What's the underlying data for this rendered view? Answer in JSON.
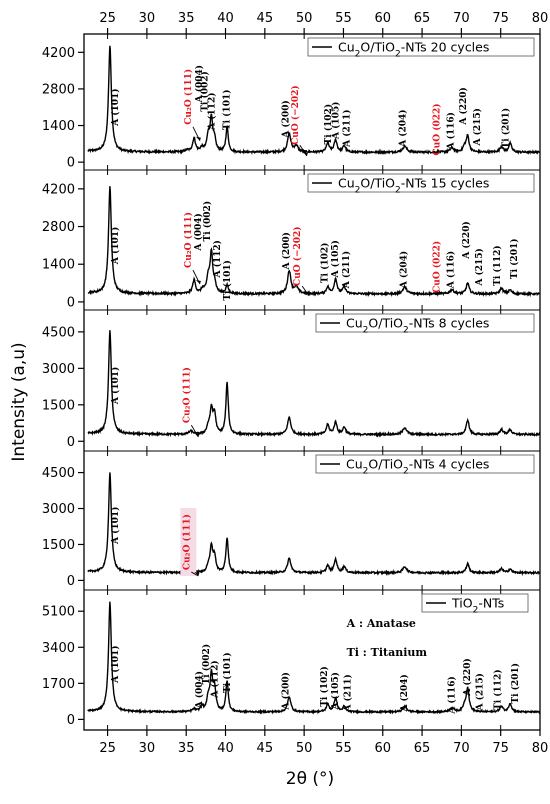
{
  "chart_data": {
    "type": "line",
    "xlabel": "2θ (°)",
    "ylabel": "Intensity (a,u)",
    "xlim": [
      22,
      80
    ],
    "x_ticks": [
      25,
      30,
      35,
      40,
      45,
      50,
      55,
      60,
      65,
      70,
      75,
      80
    ],
    "colors": {
      "line": "#000000",
      "cu_label": "#e8141b",
      "highlight": "#f4dbe6"
    },
    "panels": [
      {
        "legend_prefix": "Cu",
        "legend_sub1": "2",
        "legend_mid": "O/TiO",
        "legend_sub2": "2",
        "legend_suffix": "-NTs 20 cycles",
        "ylim": [
          -300,
          4900
        ],
        "y_ticks": [
          0,
          1400,
          2800,
          4200
        ],
        "y_tick_labels": [
          "0",
          "1400",
          "2800",
          "4200"
        ],
        "baseline": 380,
        "peaks": [
          [
            25.3,
            4050,
            0.22
          ],
          [
            35.1,
            60,
            0.3
          ],
          [
            36.0,
            520,
            0.22
          ],
          [
            37.0,
            150,
            0.22
          ],
          [
            37.8,
            550,
            0.22
          ],
          [
            38.2,
            1250,
            0.2
          ],
          [
            38.6,
            420,
            0.2
          ],
          [
            40.2,
            950,
            0.18
          ],
          [
            48.1,
            690,
            0.25
          ],
          [
            49.0,
            230,
            0.3
          ],
          [
            53.0,
            340,
            0.22
          ],
          [
            54.0,
            460,
            0.22
          ],
          [
            55.1,
            240,
            0.22
          ],
          [
            62.8,
            230,
            0.3
          ],
          [
            68.8,
            160,
            0.3
          ],
          [
            70.4,
            190,
            0.25
          ],
          [
            70.8,
            600,
            0.22
          ],
          [
            75.1,
            210,
            0.25
          ],
          [
            76.2,
            340,
            0.22
          ]
        ],
        "labels": [
          {
            "text": "A (101)",
            "x": 26.3,
            "y": 2100,
            "cu": false
          },
          {
            "text": "Cu₂O (111)",
            "x": 35.6,
            "y": 2500,
            "cu": true
          },
          {
            "text": "A (004)",
            "x": 37.0,
            "y": 3000,
            "cu": false
          },
          {
            "text": "Ti (002)",
            "x": 37.7,
            "y": 2700,
            "cu": false
          },
          {
            "text": "A (112)",
            "x": 38.6,
            "y": 1950,
            "cu": false
          },
          {
            "text": "Ti (101)",
            "x": 40.5,
            "y": 2000,
            "cu": false
          },
          {
            "text": "A (200)",
            "x": 48.0,
            "y": 1650,
            "cu": false
          },
          {
            "text": "CuO (−202)",
            "x": 49.2,
            "y": 1800,
            "cu": true
          },
          {
            "text": "Ti (102)",
            "x": 53.4,
            "y": 1450,
            "cu": false
          },
          {
            "text": "A (105)",
            "x": 54.4,
            "y": 1600,
            "cu": false
          },
          {
            "text": "A (211)",
            "x": 55.8,
            "y": 1300,
            "cu": false
          },
          {
            "text": "A (204)",
            "x": 62.9,
            "y": 1300,
            "cu": false
          },
          {
            "text": "CuO (022)",
            "x": 67.2,
            "y": 1250,
            "cu": true
          },
          {
            "text": "A (116)",
            "x": 69.0,
            "y": 1200,
            "cu": false
          },
          {
            "text": "A (220)",
            "x": 70.6,
            "y": 2150,
            "cu": false
          },
          {
            "text": "A (215)",
            "x": 72.4,
            "y": 1350,
            "cu": false
          },
          {
            "text": "Ti (201)",
            "x": 76.0,
            "y": 1300,
            "cu": false
          }
        ]
      },
      {
        "legend_prefix": "Cu",
        "legend_sub1": "2",
        "legend_mid": "O/TiO",
        "legend_sub2": "2",
        "legend_suffix": "-NTs 15 cycles",
        "ylim": [
          -300,
          4900
        ],
        "y_ticks": [
          0,
          1400,
          2800,
          4200
        ],
        "y_tick_labels": [
          "0",
          "1400",
          "2800",
          "4200"
        ],
        "baseline": 300,
        "peaks": [
          [
            25.3,
            3950,
            0.22
          ],
          [
            36.0,
            500,
            0.22
          ],
          [
            37.1,
            160,
            0.22
          ],
          [
            37.8,
            550,
            0.22
          ],
          [
            38.2,
            1450,
            0.2
          ],
          [
            38.6,
            350,
            0.2
          ],
          [
            40.2,
            300,
            0.2
          ],
          [
            48.1,
            850,
            0.25
          ],
          [
            49.0,
            250,
            0.3
          ],
          [
            53.0,
            250,
            0.22
          ],
          [
            54.0,
            550,
            0.22
          ],
          [
            55.1,
            260,
            0.22
          ],
          [
            62.8,
            250,
            0.3
          ],
          [
            68.8,
            150,
            0.3
          ],
          [
            70.8,
            400,
            0.22
          ],
          [
            75.1,
            200,
            0.25
          ],
          [
            76.2,
            140,
            0.22
          ]
        ],
        "labels": [
          {
            "text": "A (101)",
            "x": 26.3,
            "y": 2100,
            "cu": false
          },
          {
            "text": "Cu₂O (111)",
            "x": 35.6,
            "y": 2300,
            "cu": true
          },
          {
            "text": "A (004)",
            "x": 36.9,
            "y": 2600,
            "cu": false
          },
          {
            "text": "Ti (002)",
            "x": 38.0,
            "y": 3000,
            "cu": false
          },
          {
            "text": "A (112)",
            "x": 39.3,
            "y": 1600,
            "cu": false
          },
          {
            "text": "Ti (101)",
            "x": 40.6,
            "y": 800,
            "cu": false
          },
          {
            "text": "A (200)",
            "x": 48.1,
            "y": 1900,
            "cu": false
          },
          {
            "text": "CuO (−202)",
            "x": 49.5,
            "y": 1700,
            "cu": true
          },
          {
            "text": "Ti (102)",
            "x": 53.0,
            "y": 1450,
            "cu": false
          },
          {
            "text": "A (105)",
            "x": 54.3,
            "y": 1600,
            "cu": false
          },
          {
            "text": "A (211)",
            "x": 55.7,
            "y": 1200,
            "cu": false
          },
          {
            "text": "A (204)",
            "x": 63.0,
            "y": 1200,
            "cu": false
          },
          {
            "text": "CuO (022)",
            "x": 67.2,
            "y": 1300,
            "cu": true
          },
          {
            "text": "A (116)",
            "x": 69.0,
            "y": 1200,
            "cu": false
          },
          {
            "text": "A (220)",
            "x": 71.0,
            "y": 2300,
            "cu": false
          },
          {
            "text": "A (215)",
            "x": 72.6,
            "y": 1300,
            "cu": false
          },
          {
            "text": "Ti (112)",
            "x": 74.9,
            "y": 1350,
            "cu": false
          },
          {
            "text": "Ti (201)",
            "x": 77.1,
            "y": 1600,
            "cu": false
          }
        ]
      },
      {
        "legend_prefix": "Cu",
        "legend_sub1": "2",
        "legend_mid": "O/TiO",
        "legend_sub2": "2",
        "legend_suffix": "-NTs 8 cycles",
        "ylim": [
          -400,
          5400
        ],
        "y_ticks": [
          0,
          1500,
          3000,
          4500
        ],
        "y_tick_labels": [
          "0",
          "1500",
          "3000",
          "4500"
        ],
        "baseline": 280,
        "peaks": [
          [
            25.3,
            4250,
            0.22
          ],
          [
            35.6,
            130,
            0.3
          ],
          [
            37.8,
            280,
            0.22
          ],
          [
            38.2,
            1000,
            0.2
          ],
          [
            38.6,
            800,
            0.2
          ],
          [
            40.2,
            2100,
            0.18
          ],
          [
            48.1,
            700,
            0.25
          ],
          [
            53.0,
            400,
            0.22
          ],
          [
            54.0,
            500,
            0.22
          ],
          [
            55.1,
            300,
            0.22
          ],
          [
            62.8,
            280,
            0.3
          ],
          [
            70.8,
            600,
            0.22
          ],
          [
            75.1,
            200,
            0.25
          ],
          [
            76.2,
            200,
            0.22
          ]
        ],
        "labels": [
          {
            "text": "A (101)",
            "x": 26.3,
            "y": 2300,
            "cu": false
          },
          {
            "text": "Cu₂O (111)",
            "x": 35.4,
            "y": 1900,
            "cu": true
          }
        ]
      },
      {
        "legend_prefix": "Cu",
        "legend_sub1": "2",
        "legend_mid": "O/TiO",
        "legend_sub2": "2",
        "legend_suffix": "-NTs 4 cycles",
        "ylim": [
          -400,
          5400
        ],
        "y_ticks": [
          0,
          1500,
          3000,
          4500
        ],
        "y_tick_labels": [
          "0",
          "1500",
          "3000",
          "4500"
        ],
        "baseline": 320,
        "peaks": [
          [
            25.3,
            4150,
            0.22
          ],
          [
            35.6,
            100,
            0.3
          ],
          [
            37.8,
            230,
            0.22
          ],
          [
            38.2,
            1050,
            0.2
          ],
          [
            38.6,
            650,
            0.2
          ],
          [
            40.2,
            1450,
            0.18
          ],
          [
            48.1,
            600,
            0.25
          ],
          [
            53.0,
            300,
            0.22
          ],
          [
            54.0,
            550,
            0.22
          ],
          [
            55.1,
            250,
            0.22
          ],
          [
            62.8,
            250,
            0.3
          ],
          [
            70.8,
            380,
            0.22
          ],
          [
            75.1,
            160,
            0.25
          ],
          [
            76.2,
            150,
            0.22
          ]
        ],
        "labels": [
          {
            "text": "A (101)",
            "x": 26.3,
            "y": 2300,
            "cu": false
          },
          {
            "text": "Cu₂O (111)",
            "x": 35.4,
            "y": 1600,
            "cu": true,
            "highlight": true
          }
        ]
      },
      {
        "legend_prefix": "TiO",
        "legend_sub1": "2",
        "legend_mid": "-NTs",
        "legend_sub2": "",
        "legend_suffix": "",
        "ylim": [
          -500,
          6100
        ],
        "y_ticks": [
          0,
          1700,
          3400,
          5100
        ],
        "y_tick_labels": [
          "0",
          "1700",
          "3400",
          "5100"
        ],
        "baseline": 350,
        "peaks": [
          [
            25.3,
            5150,
            0.22
          ],
          [
            36.0,
            120,
            0.25
          ],
          [
            37.0,
            250,
            0.22
          ],
          [
            37.8,
            550,
            0.22
          ],
          [
            38.2,
            1650,
            0.2
          ],
          [
            38.6,
            1050,
            0.2
          ],
          [
            40.2,
            1450,
            0.18
          ],
          [
            48.1,
            700,
            0.25
          ],
          [
            53.0,
            350,
            0.22
          ],
          [
            54.0,
            650,
            0.22
          ],
          [
            55.1,
            250,
            0.22
          ],
          [
            62.8,
            260,
            0.3
          ],
          [
            68.8,
            200,
            0.3
          ],
          [
            70.4,
            250,
            0.25
          ],
          [
            70.8,
            1100,
            0.22
          ],
          [
            75.1,
            250,
            0.25
          ],
          [
            76.2,
            400,
            0.22
          ]
        ],
        "labels": [
          {
            "text": "A (101)",
            "x": 26.3,
            "y": 2600,
            "cu": false
          },
          {
            "text": "A (004)",
            "x": 37.0,
            "y": 1400,
            "cu": false
          },
          {
            "text": "Ti (002)",
            "x": 37.9,
            "y": 2600,
            "cu": false
          },
          {
            "text": "A (112)",
            "x": 39.0,
            "y": 1900,
            "cu": false
          },
          {
            "text": "Ti (101)",
            "x": 40.6,
            "y": 2200,
            "cu": false
          },
          {
            "text": "A (200)",
            "x": 48.0,
            "y": 1350,
            "cu": false
          },
          {
            "text": "Ti (102)",
            "x": 52.9,
            "y": 1550,
            "cu": false
          },
          {
            "text": "A (105)",
            "x": 54.3,
            "y": 1350,
            "cu": false
          },
          {
            "text": "A (211)",
            "x": 55.9,
            "y": 1250,
            "cu": false
          },
          {
            "text": "A (204)",
            "x": 63.1,
            "y": 1250,
            "cu": false
          },
          {
            "text": "A (116)",
            "x": 69.1,
            "y": 1150,
            "cu": false
          },
          {
            "text": "A (220)",
            "x": 71.1,
            "y": 2000,
            "cu": false
          },
          {
            "text": "A (215)",
            "x": 72.7,
            "y": 1300,
            "cu": false
          },
          {
            "text": "Ti (112)",
            "x": 75.0,
            "y": 1400,
            "cu": false
          },
          {
            "text": "Ti (201)",
            "x": 77.2,
            "y": 1700,
            "cu": false
          }
        ],
        "notes": [
          {
            "text": "A : Anatase",
            "x": 55.4,
            "y": 4350
          },
          {
            "text": "Ti : Titanium",
            "x": 55.4,
            "y": 3000
          }
        ]
      }
    ]
  }
}
